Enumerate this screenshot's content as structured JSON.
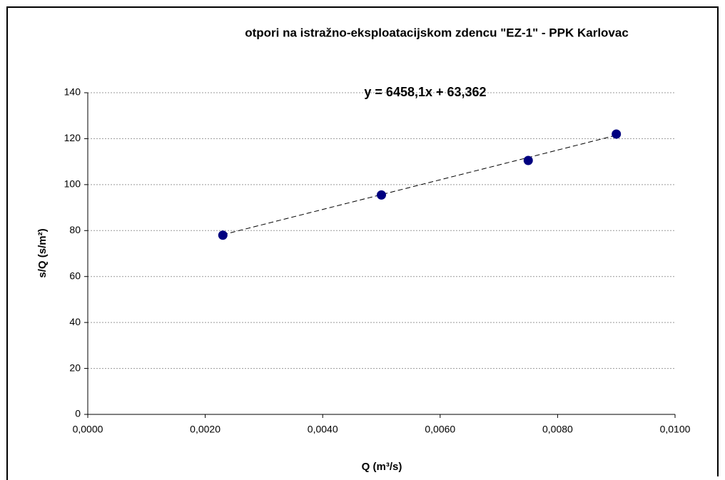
{
  "chart_data": {
    "type": "scatter",
    "title": "otpori na istražno-eksploatacijskom zdencu  \"EZ-1\" - PPK Karlovac",
    "x_label": "Q (m³/s)",
    "y_label": "s/Q (s/m²)",
    "series": [
      {
        "name": null,
        "color": "#000080",
        "x": [
          0.0023,
          0.005,
          0.0075,
          0.009
        ],
        "values": [
          78,
          95.5,
          110.5,
          122
        ]
      }
    ],
    "trendline": {
      "slope": 6458.1,
      "intercept": 63.362,
      "label": "y = 6458,1x + 63,362"
    },
    "xlim": [
      0,
      0.01
    ],
    "xticks": [
      {
        "value": 0,
        "label": "0,0000"
      },
      {
        "value": 0.002,
        "label": "0,0020"
      },
      {
        "value": 0.004,
        "label": "0,0040"
      },
      {
        "value": 0.006,
        "label": "0,0060"
      },
      {
        "value": 0.008,
        "label": "0,0080"
      },
      {
        "value": 0.01,
        "label": "0,0100"
      }
    ],
    "ylim": [
      0,
      140
    ],
    "yticks": [
      0,
      20,
      40,
      60,
      80,
      100,
      120,
      140
    ],
    "grid": true
  }
}
